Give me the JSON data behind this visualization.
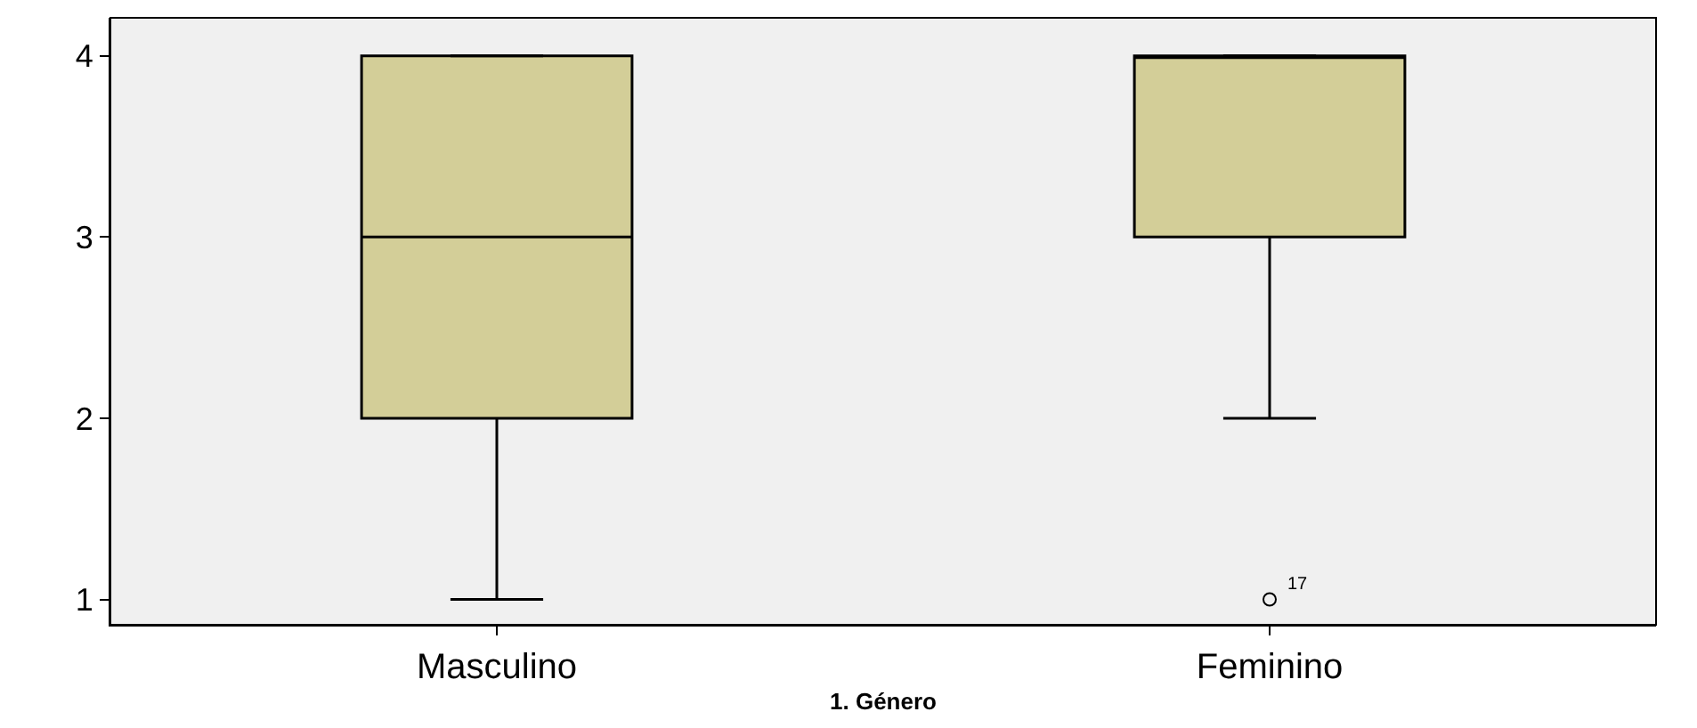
{
  "chart_data": {
    "type": "box",
    "xlabel": "1. Género",
    "categories": [
      "Masculino",
      "Feminino"
    ],
    "boxes": [
      {
        "low": 1,
        "q1": 2,
        "median": 3,
        "q3": 4,
        "high": 4
      },
      {
        "low": 2,
        "q1": 3,
        "median": 4,
        "q3": 4,
        "high": 4,
        "outliers": [
          1
        ]
      }
    ],
    "color": "#d3ce98",
    "ylim": [
      0.86,
      4.21
    ],
    "yticks": [
      1,
      2,
      3,
      4
    ],
    "grid": false,
    "annotations": [
      "17"
    ]
  }
}
